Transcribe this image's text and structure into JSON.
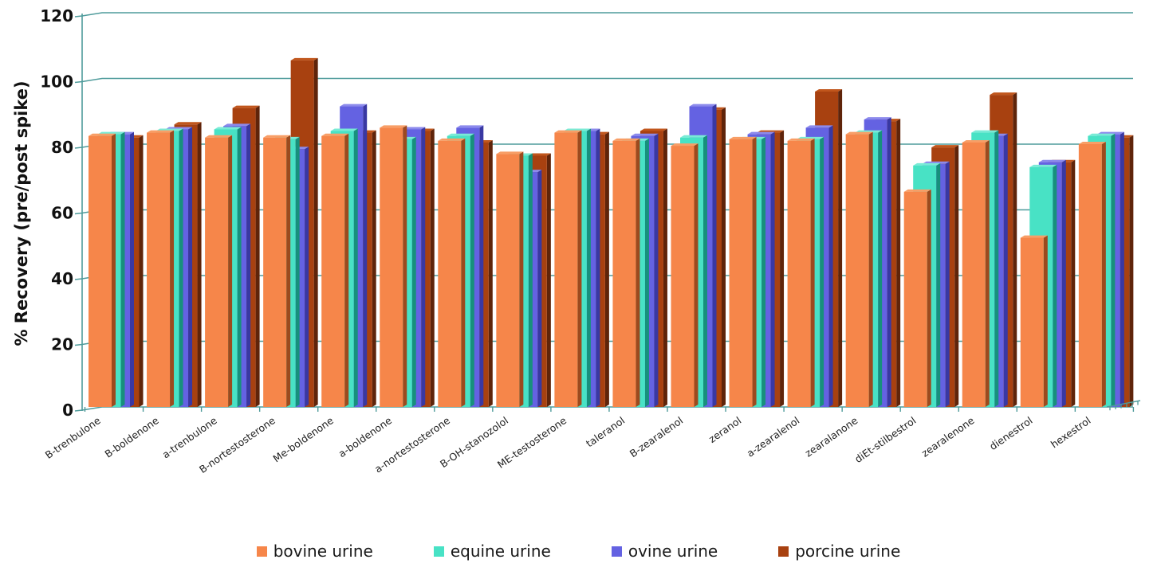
{
  "chart": {
    "y_axis_title": "% Recovery (pre/post spike)"
  },
  "chart_data": {
    "type": "bar",
    "subtype": "3d-clustered-column",
    "title": "",
    "xlabel": "",
    "ylabel": "% Recovery (pre/post spike)",
    "ylim": [
      0,
      120
    ],
    "ytick_step": 20,
    "grid": true,
    "legend_position": "bottom",
    "gridline_color": "#4E9B9B",
    "label_color": "#1f1f1f",
    "categories": [
      "B-trenbulone",
      "B-boldenone",
      "a-trenbulone",
      "B-nortestosterone",
      "Me-boldenone",
      "a-boldenone",
      "a-nortestosterone",
      "B-OH-stanozolol",
      "ME-testosterone",
      "taleranol",
      "B-zearalenol",
      "zeranol",
      "a-zearalenol",
      "zearalanone",
      "diEt-stilbestrol",
      "zearalenone",
      "dienestrol",
      "hexestrol"
    ],
    "series": [
      {
        "name": "bovine urine",
        "color": "#F6864A",
        "side_color": "#9C4A1E",
        "top_color": "#F89E66",
        "values": [
          82.5,
          83.5,
          82,
          82,
          82.5,
          85,
          81,
          77,
          83.5,
          81,
          79.5,
          81.5,
          81,
          83,
          65.5,
          80.5,
          51.5,
          80
        ]
      },
      {
        "name": "equine urine",
        "color": "#48E2C5",
        "side_color": "#17907C",
        "top_color": "#79EBD6",
        "values": [
          83,
          84,
          84.5,
          81.5,
          84,
          81.5,
          82.5,
          76.5,
          84,
          81,
          82,
          81.5,
          81.5,
          83.5,
          73.5,
          83.5,
          73,
          82.5
        ]
      },
      {
        "name": "ovine urine",
        "color": "#6462E2",
        "side_color": "#3938A3",
        "top_color": "#8C8AEC",
        "values": [
          83,
          84.5,
          85.5,
          78.5,
          91.5,
          84.5,
          85,
          71.5,
          84,
          82.5,
          91.5,
          83,
          85,
          87.5,
          74,
          82.5,
          74.5,
          83
        ]
      },
      {
        "name": "porcine urine",
        "color": "#A84110",
        "side_color": "#5F240A",
        "top_color": "#C1561C",
        "values": [
          82,
          86,
          91,
          105.5,
          83.5,
          84,
          80.5,
          76.5,
          83,
          84,
          90.5,
          83.5,
          96,
          87,
          79,
          95,
          74.5,
          82
        ]
      }
    ]
  }
}
